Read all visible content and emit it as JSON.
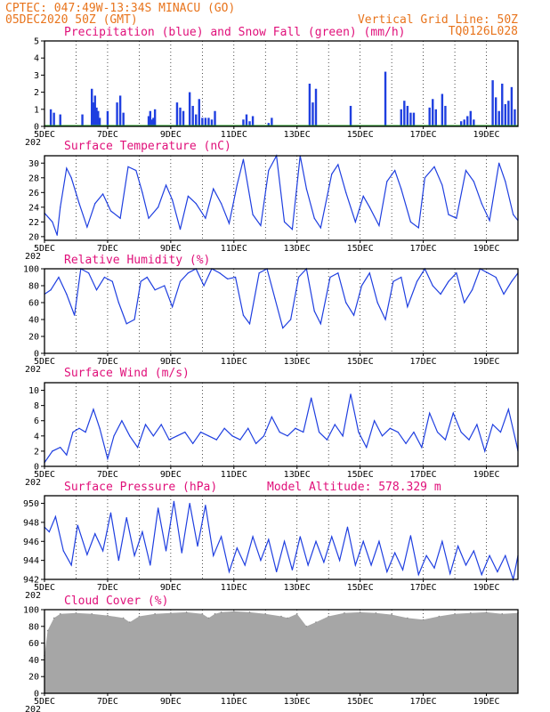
{
  "header": {
    "line1": "CPTEC:  047:49W-13:34S  MINACU (GO)",
    "line2": "05DEC2020 50Z (GMT)",
    "grid_note": "Vertical Grid Line: 50Z",
    "code": "TQ0126L028"
  },
  "x_labels": [
    "5DEC",
    "7DEC",
    "9DEC",
    "11DEC",
    "13DEC",
    "15DEC",
    "17DEC",
    "19DEC"
  ],
  "year_fragment": "202",
  "colors": {
    "line": "#1f3fe0",
    "bar": "#1f3fe0",
    "snow": "#2aa02a",
    "cloud": "#a6a6a6",
    "title": "#e0107a",
    "header": "#e8741c"
  },
  "chart_data": [
    {
      "type": "bar",
      "title": "Precipitation (blue) and Snow Fall (green) (mm/h)",
      "ylim": [
        0,
        5
      ],
      "yticks": [
        "0",
        "1",
        "2",
        "3",
        "4",
        "5"
      ],
      "x_range_days": [
        0,
        15
      ],
      "series": [
        {
          "name": "Precipitation",
          "x": [
            0.2,
            0.3,
            0.5,
            1.2,
            1.5,
            1.55,
            1.6,
            1.65,
            1.7,
            1.75,
            2.0,
            2.3,
            2.4,
            2.5,
            3.3,
            3.35,
            3.4,
            3.45,
            3.5,
            4.2,
            4.3,
            4.4,
            4.6,
            4.7,
            4.8,
            4.9,
            5.0,
            5.1,
            5.2,
            5.3,
            5.4,
            6.3,
            6.4,
            6.5,
            6.6,
            7.1,
            7.2,
            8.4,
            8.5,
            8.6,
            9.7,
            10.8,
            11.3,
            11.4,
            11.5,
            11.6,
            11.7,
            12.2,
            12.3,
            12.4,
            12.6,
            12.7,
            13.2,
            13.3,
            13.4,
            13.5,
            13.6,
            14.2,
            14.3,
            14.4,
            14.5,
            14.6,
            14.7,
            14.8,
            14.9
          ],
          "values": [
            1.0,
            0.8,
            0.7,
            0.7,
            2.2,
            1.4,
            1.8,
            1.1,
            0.9,
            0.5,
            0.9,
            1.4,
            1.8,
            0.8,
            0.6,
            0.9,
            0.4,
            0.5,
            1.0,
            1.4,
            1.1,
            0.9,
            2.0,
            1.2,
            0.7,
            1.6,
            0.5,
            0.5,
            0.5,
            0.4,
            0.9,
            0.4,
            0.7,
            0.3,
            0.6,
            0.2,
            0.5,
            2.5,
            1.4,
            2.2,
            1.2,
            3.2,
            1.0,
            1.5,
            1.2,
            0.8,
            0.8,
            1.1,
            1.6,
            1.0,
            1.9,
            1.2,
            0.3,
            0.4,
            0.6,
            0.9,
            0.4,
            2.7,
            1.7,
            0.9,
            2.5,
            1.3,
            1.5,
            2.3,
            1.0
          ]
        },
        {
          "name": "Snow Fall",
          "x": [
            0,
            15
          ],
          "values": [
            0,
            0
          ]
        }
      ]
    },
    {
      "type": "line",
      "title": "Surface Temperature (nC)",
      "ylim": [
        19.5,
        31
      ],
      "yticks": [
        "20",
        "22",
        "24",
        "26",
        "28",
        "30"
      ],
      "x": [
        0,
        0.25,
        0.4,
        0.5,
        0.7,
        0.85,
        1.1,
        1.35,
        1.6,
        1.85,
        2.1,
        2.4,
        2.65,
        2.9,
        3.1,
        3.3,
        3.6,
        3.85,
        4.05,
        4.3,
        4.55,
        4.8,
        5.1,
        5.35,
        5.6,
        5.85,
        6.1,
        6.3,
        6.6,
        6.85,
        7.1,
        7.35,
        7.6,
        7.85,
        8.1,
        8.3,
        8.55,
        8.75,
        9.1,
        9.3,
        9.55,
        9.85,
        10.1,
        10.3,
        10.6,
        10.85,
        11.1,
        11.3,
        11.6,
        11.85,
        12.05,
        12.35,
        12.6,
        12.8,
        13.05,
        13.35,
        13.6,
        13.85,
        14.1,
        14.4,
        14.6,
        14.85,
        15
      ],
      "values": [
        23.2,
        22,
        20.2,
        24,
        29.3,
        28,
        24.5,
        21.3,
        24.5,
        25.8,
        23.5,
        22.5,
        29.5,
        29,
        26,
        22.5,
        24,
        27,
        25,
        21,
        25.5,
        24.5,
        22.5,
        26.5,
        24.5,
        21.8,
        27,
        30.5,
        23,
        21.5,
        29,
        31,
        22,
        21,
        31,
        26.5,
        22.5,
        21.2,
        28.5,
        29.8,
        26,
        22,
        25.5,
        24,
        21.5,
        27.5,
        29,
        26.5,
        22,
        21.2,
        28,
        29.5,
        27,
        23,
        22.5,
        29,
        27.5,
        24.5,
        22.2,
        30,
        27.5,
        23,
        22.2
      ]
    },
    {
      "type": "line",
      "title": "Relative Humidity (%)",
      "ylim": [
        0,
        100
      ],
      "yticks": [
        "0",
        "20",
        "40",
        "60",
        "80",
        "100"
      ],
      "x": [
        0,
        0.2,
        0.45,
        0.7,
        0.95,
        1.15,
        1.4,
        1.65,
        1.9,
        2.15,
        2.35,
        2.6,
        2.85,
        3.05,
        3.25,
        3.5,
        3.8,
        4.05,
        4.3,
        4.55,
        4.8,
        5.05,
        5.3,
        5.55,
        5.8,
        6.05,
        6.3,
        6.5,
        6.8,
        7.05,
        7.3,
        7.55,
        7.8,
        8.05,
        8.3,
        8.55,
        8.75,
        9.05,
        9.3,
        9.55,
        9.8,
        10.05,
        10.3,
        10.55,
        10.8,
        11.05,
        11.3,
        11.5,
        11.8,
        12.05,
        12.3,
        12.55,
        12.8,
        13.05,
        13.3,
        13.55,
        13.8,
        14.05,
        14.3,
        14.55,
        14.8,
        15
      ],
      "values": [
        70,
        75,
        90,
        70,
        45,
        100,
        95,
        75,
        90,
        85,
        60,
        35,
        40,
        85,
        90,
        75,
        80,
        55,
        85,
        95,
        100,
        80,
        100,
        95,
        88,
        90,
        45,
        35,
        95,
        100,
        65,
        30,
        40,
        90,
        100,
        50,
        35,
        90,
        95,
        60,
        45,
        80,
        95,
        60,
        40,
        85,
        90,
        55,
        85,
        100,
        80,
        70,
        85,
        95,
        60,
        75,
        100,
        95,
        90,
        70,
        85,
        95
      ]
    },
    {
      "type": "line",
      "title": "Surface Wind (m/s)",
      "ylim": [
        0,
        11
      ],
      "yticks": [
        "0",
        "2",
        "4",
        "6",
        "8",
        "10"
      ],
      "x": [
        0,
        0.25,
        0.5,
        0.7,
        0.9,
        1.1,
        1.3,
        1.55,
        1.75,
        2.0,
        2.2,
        2.45,
        2.7,
        2.95,
        3.2,
        3.45,
        3.7,
        3.95,
        4.2,
        4.45,
        4.7,
        4.95,
        5.2,
        5.45,
        5.7,
        5.95,
        6.2,
        6.45,
        6.7,
        6.95,
        7.2,
        7.45,
        7.7,
        7.95,
        8.2,
        8.45,
        8.7,
        8.95,
        9.2,
        9.45,
        9.7,
        9.95,
        10.2,
        10.45,
        10.7,
        10.95,
        11.2,
        11.45,
        11.7,
        11.95,
        12.2,
        12.45,
        12.7,
        12.95,
        13.2,
        13.45,
        13.7,
        13.95,
        14.2,
        14.45,
        14.7,
        14.95,
        15
      ],
      "values": [
        0.5,
        2.0,
        2.5,
        1.5,
        4.5,
        5.0,
        4.5,
        7.5,
        5.0,
        1.0,
        4.0,
        6.0,
        4.0,
        2.5,
        5.5,
        4.0,
        5.5,
        3.5,
        4.0,
        4.5,
        3.0,
        4.5,
        4.0,
        3.5,
        5.0,
        4.0,
        3.5,
        5.0,
        3.0,
        4.0,
        6.5,
        4.5,
        4.0,
        5.0,
        4.5,
        9.0,
        4.5,
        3.5,
        5.5,
        4.0,
        9.5,
        4.5,
        2.5,
        6.0,
        4.0,
        5.0,
        4.5,
        3.0,
        4.5,
        2.5,
        7.0,
        4.5,
        3.5,
        7.0,
        4.5,
        3.5,
        5.5,
        2.0,
        5.5,
        4.5,
        7.5,
        3.0,
        2.0
      ]
    },
    {
      "type": "line",
      "title": "Surface Pressure (hPa)",
      "annotation": "Model Altitude: 578.329 m",
      "ylim": [
        942,
        950.8
      ],
      "yticks": [
        "942",
        "944",
        "946",
        "948",
        "950"
      ],
      "x": [
        0,
        0.15,
        0.35,
        0.6,
        0.85,
        1.05,
        1.35,
        1.6,
        1.85,
        2.1,
        2.35,
        2.6,
        2.85,
        3.1,
        3.35,
        3.6,
        3.85,
        4.1,
        4.35,
        4.6,
        4.85,
        5.1,
        5.35,
        5.6,
        5.85,
        6.1,
        6.35,
        6.6,
        6.85,
        7.1,
        7.35,
        7.6,
        7.85,
        8.1,
        8.35,
        8.6,
        8.85,
        9.1,
        9.35,
        9.6,
        9.85,
        10.1,
        10.35,
        10.6,
        10.85,
        11.1,
        11.35,
        11.6,
        11.85,
        12.1,
        12.35,
        12.6,
        12.85,
        13.1,
        13.35,
        13.6,
        13.85,
        14.1,
        14.35,
        14.6,
        14.85,
        15
      ],
      "values": [
        947.5,
        947,
        948.6,
        945,
        943.5,
        947.7,
        944.6,
        946.8,
        945,
        949,
        944,
        948.5,
        944.5,
        947,
        943.5,
        949.5,
        945,
        950.2,
        944.8,
        950,
        945.5,
        949.8,
        944.5,
        946.5,
        942.8,
        945.3,
        943.5,
        946.5,
        944,
        946.2,
        942.8,
        946,
        943,
        946.5,
        943.5,
        946,
        943.8,
        946.5,
        944,
        947.5,
        943.5,
        946,
        943.5,
        946,
        942.8,
        944.8,
        943,
        946.6,
        942.5,
        944.5,
        943.2,
        946,
        942.6,
        945.5,
        943.5,
        945,
        942.5,
        944.5,
        942.8,
        944.5,
        942,
        944.5
      ]
    },
    {
      "type": "area",
      "title": "Cloud Cover (%)",
      "ylim": [
        0,
        100
      ],
      "yticks": [
        "0",
        "20",
        "40",
        "60",
        "80",
        "100"
      ],
      "x": [
        0,
        0.1,
        0.3,
        0.5,
        1.0,
        1.5,
        2.0,
        2.5,
        2.7,
        3.0,
        3.5,
        4.0,
        4.5,
        5.0,
        5.2,
        5.4,
        5.6,
        6.0,
        6.5,
        7.0,
        7.5,
        7.7,
        8.0,
        8.3,
        8.6,
        9.0,
        9.5,
        10.0,
        10.5,
        11.0,
        11.5,
        12.0,
        12.5,
        13.0,
        13.5,
        14.0,
        14.5,
        15.0
      ],
      "values": [
        45,
        75,
        90,
        95,
        96,
        95,
        93,
        90,
        85,
        92,
        95,
        96,
        97,
        95,
        90,
        95,
        97,
        98,
        97,
        95,
        92,
        90,
        95,
        80,
        85,
        92,
        96,
        97,
        96,
        94,
        90,
        88,
        92,
        95,
        96,
        97,
        95,
        96
      ]
    }
  ]
}
